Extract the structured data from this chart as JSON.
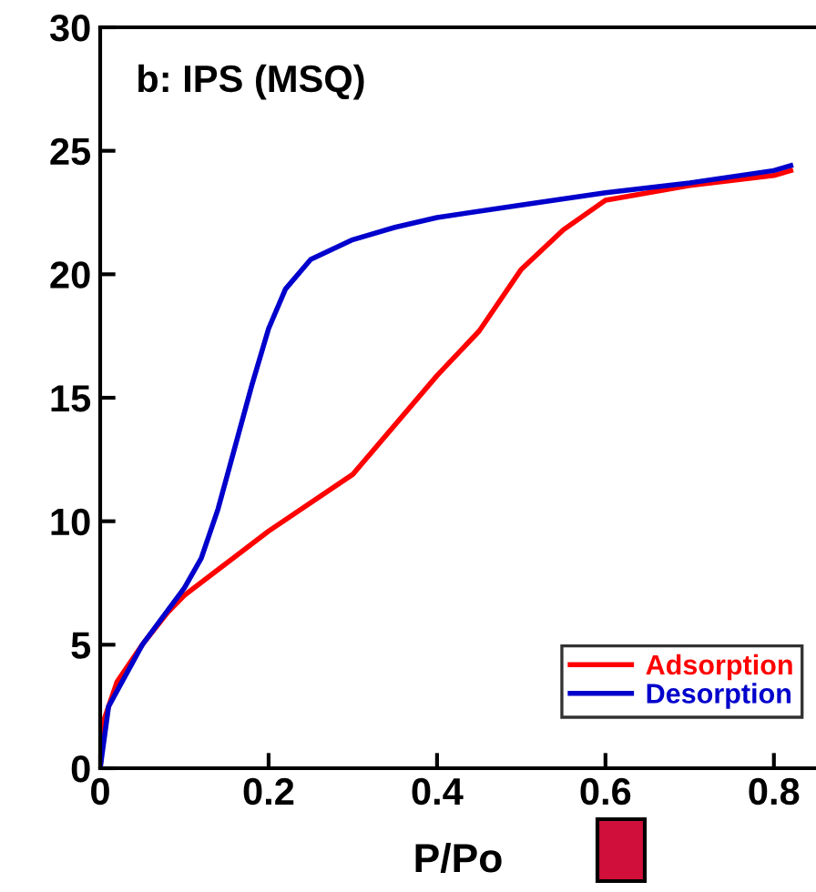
{
  "chart_data": {
    "type": "line",
    "xlabel": "P/Po",
    "annotations": [
      "b: IPS (MSQ)"
    ],
    "xlim": [
      0,
      0.85
    ],
    "ylim": [
      0,
      30
    ],
    "xticks": [
      0,
      0.2,
      0.4,
      0.6,
      0.8
    ],
    "yticks": [
      0,
      5,
      10,
      15,
      20,
      25,
      30
    ],
    "grid": false,
    "legend": "bottom right",
    "marker": "none",
    "line_style": "solid",
    "series": [
      {
        "name": "Adsorption",
        "color": "#ff0000",
        "x": [
          0,
          0.005,
          0.02,
          0.05,
          0.08,
          0.1,
          0.15,
          0.2,
          0.3,
          0.4,
          0.45,
          0.5,
          0.55,
          0.6,
          0.7,
          0.8,
          0.82
        ],
        "values": [
          0,
          2,
          3.5,
          5,
          6.3,
          7,
          8.3,
          9.6,
          11.9,
          15.9,
          17.7,
          20.2,
          21.8,
          23,
          23.6,
          24,
          24.2
        ]
      },
      {
        "name": "Desorption",
        "color": "#0000cc",
        "x": [
          0,
          0.01,
          0.05,
          0.1,
          0.12,
          0.14,
          0.16,
          0.18,
          0.2,
          0.22,
          0.25,
          0.3,
          0.35,
          0.4,
          0.5,
          0.6,
          0.7,
          0.8,
          0.82
        ],
        "values": [
          0,
          2.5,
          5,
          7.3,
          8.5,
          10.5,
          13,
          15.5,
          17.8,
          19.4,
          20.6,
          21.4,
          21.9,
          22.3,
          22.8,
          23.3,
          23.7,
          24.2,
          24.4
        ]
      }
    ]
  }
}
